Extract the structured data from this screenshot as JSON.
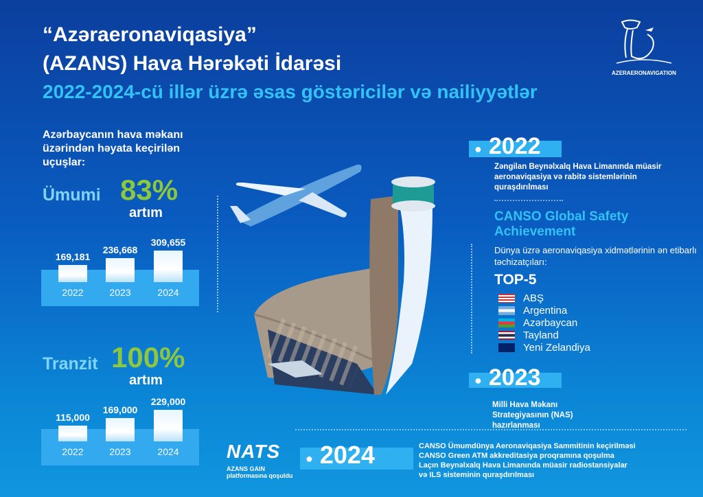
{
  "header": {
    "title_line1": "“Azəraeronaviqasiya”",
    "title_line2": "(AZANS) Hava Hərəkəti İdarəsi",
    "subtitle": "2022-2024-cü illər üzrə əsas göstəricilər və nailiyyətlər",
    "logo_text": "AZERAERONAVIGATION"
  },
  "flights": {
    "heading": "Azərbaycanın hava məkanı üzərindən həyata keçirilən uçuşlar:",
    "total": {
      "label": "Ümumi",
      "percent": "83%",
      "growth": "artım"
    },
    "transit": {
      "label": "Tranzit",
      "percent": "100%",
      "growth": "artım"
    }
  },
  "chart_data": [
    {
      "type": "bar",
      "categories": [
        "2022",
        "2023",
        "2024"
      ],
      "values": [
        169181,
        236668,
        309655
      ],
      "labels": [
        "169,181",
        "236,668",
        "309,655"
      ]
    },
    {
      "type": "bar",
      "categories": [
        "2022",
        "2023",
        "2024"
      ],
      "values": [
        115000,
        169000,
        229000
      ],
      "labels": [
        "115,000",
        "169,000",
        "229,000"
      ]
    }
  ],
  "timeline": {
    "y2022": {
      "year": "2022",
      "text": "Zəngilan Beynəlxalq Hava Limanında müasir aeronaviqasiya və rabitə sistemlərinin quraşdırılması"
    },
    "canso": {
      "title": "CANSO Global Safety Achievement",
      "text": "Dünya üzrə aeronaviqasiya xidmətlərinin ən etibarlı təchizatçıları:",
      "top": "TOP-5",
      "countries": [
        {
          "name": "ABŞ",
          "flag": "us-flag"
        },
        {
          "name": "Argentina",
          "flag": "argentina-flag"
        },
        {
          "name": "Azərbaycan",
          "flag": "azerbaijan-flag"
        },
        {
          "name": "Tayland",
          "flag": "thailand-flag"
        },
        {
          "name": "Yeni Zelandiya",
          "flag": "new-zealand-flag"
        }
      ]
    },
    "y2023": {
      "year": "2023",
      "text": "Milli Hava Məkanı Strategiyasının (NAS) hazırlanması"
    },
    "y2024": {
      "year": "2024",
      "items": [
        "CANSO Ümumdünya Aeronaviqasiya Sammitinin keçirilməsi",
        "CANSO Green ATM akkreditasiya proqramına qoşulma",
        "Laçın Beynəlxalq Hava Limanında müasir radiostansiyalar",
        "və ILS sisteminin quraşdırılması"
      ]
    }
  },
  "nats": {
    "logo": "NATS",
    "line1": "AZANS GAIN",
    "line2": "platformasına qoşuldu"
  },
  "colors": {
    "accent": "#33c2f6",
    "green": "#8dc63f",
    "badge": "#2fb0f0"
  }
}
